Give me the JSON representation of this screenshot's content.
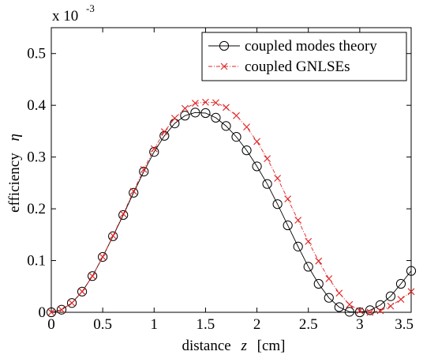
{
  "chart_data": {
    "type": "line",
    "title": "",
    "xlabel": "distance",
    "xlabel_var": "z",
    "xlabel_unit": "[cm]",
    "ylabel": "efficiency",
    "ylabel_var": "η",
    "y_multiplier_base": "x 10",
    "y_multiplier_exp": "-3",
    "xlim": [
      0,
      3.5
    ],
    "ylim": [
      0,
      0.55
    ],
    "xticks": [
      "0",
      "0.5",
      "1",
      "1.5",
      "2",
      "2.5",
      "3",
      "3.5"
    ],
    "yticks": [
      "0",
      "0.1",
      "0.2",
      "0.3",
      "0.4",
      "0.5"
    ],
    "xtick_values": [
      0,
      0.5,
      1,
      1.5,
      2,
      2.5,
      3,
      3.5
    ],
    "ytick_values": [
      0,
      0.1,
      0.2,
      0.3,
      0.4,
      0.5
    ],
    "grid": false,
    "legend_position": "top-right",
    "series": [
      {
        "name": "coupled modes theory",
        "color": "#000000",
        "line_style": "solid",
        "marker": "circle",
        "x": [
          0,
          0.1,
          0.2,
          0.3,
          0.4,
          0.5,
          0.6,
          0.7,
          0.8,
          0.9,
          1.0,
          1.1,
          1.2,
          1.3,
          1.4,
          1.5,
          1.6,
          1.7,
          1.8,
          1.9,
          2.0,
          2.1,
          2.2,
          2.3,
          2.4,
          2.5,
          2.6,
          2.7,
          2.8,
          2.9,
          3.0,
          3.1,
          3.2,
          3.3,
          3.4,
          3.5
        ],
        "y": [
          0,
          0.005,
          0.018,
          0.04,
          0.07,
          0.107,
          0.147,
          0.188,
          0.231,
          0.272,
          0.31,
          0.341,
          0.365,
          0.38,
          0.386,
          0.385,
          0.376,
          0.36,
          0.339,
          0.313,
          0.282,
          0.248,
          0.209,
          0.168,
          0.127,
          0.088,
          0.055,
          0.028,
          0.01,
          0.001,
          0.0,
          0.004,
          0.014,
          0.031,
          0.055,
          0.08
        ]
      },
      {
        "name": "coupled GNLSEs",
        "color": "#e02020",
        "line_style": "dashdot",
        "marker": "x",
        "x": [
          0,
          0.1,
          0.2,
          0.3,
          0.4,
          0.5,
          0.6,
          0.7,
          0.8,
          0.9,
          1.0,
          1.1,
          1.2,
          1.3,
          1.4,
          1.5,
          1.6,
          1.7,
          1.8,
          1.9,
          2.0,
          2.1,
          2.2,
          2.3,
          2.4,
          2.5,
          2.6,
          2.7,
          2.8,
          2.9,
          3.0,
          3.1,
          3.2,
          3.3,
          3.4,
          3.5
        ],
        "y": [
          0,
          0.005,
          0.018,
          0.04,
          0.07,
          0.107,
          0.148,
          0.19,
          0.234,
          0.276,
          0.316,
          0.349,
          0.375,
          0.394,
          0.404,
          0.406,
          0.405,
          0.396,
          0.38,
          0.358,
          0.33,
          0.297,
          0.259,
          0.219,
          0.178,
          0.137,
          0.099,
          0.065,
          0.037,
          0.015,
          0.003,
          0.0,
          0.003,
          0.012,
          0.025,
          0.04
        ]
      }
    ]
  }
}
